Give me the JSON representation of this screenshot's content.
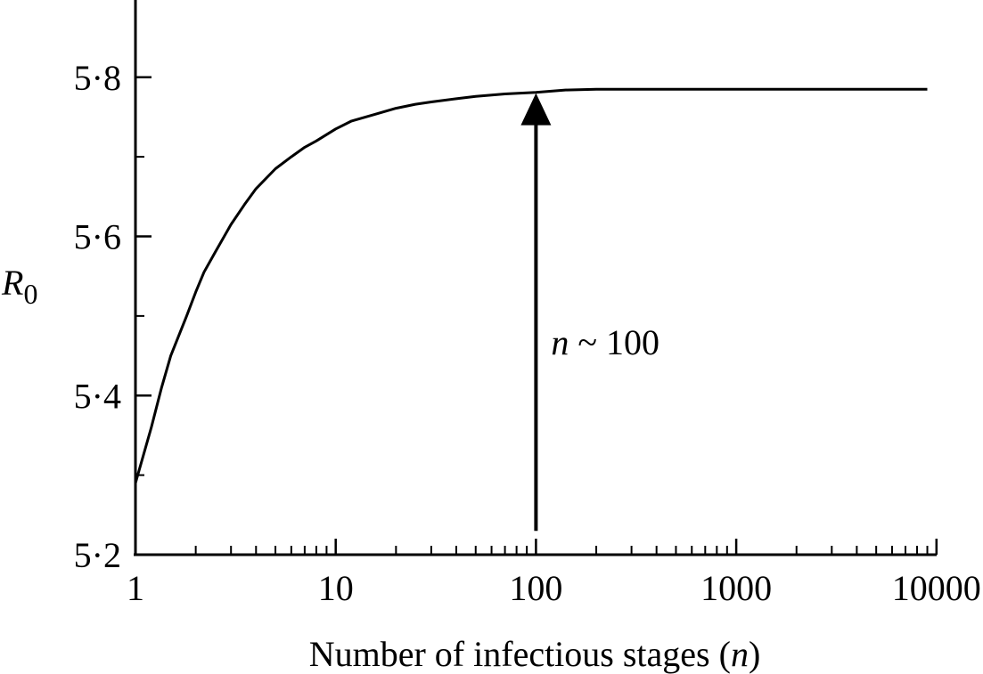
{
  "chart_data": {
    "type": "line",
    "xscale": "log",
    "xlim": [
      1,
      10000
    ],
    "ylim": [
      5.2,
      5.9
    ],
    "xlabel": {
      "pre": "Number of infectious stages (",
      "var": "n",
      "post": ")"
    },
    "ylabel": {
      "var": "R",
      "sub": "0"
    },
    "x_ticks": [
      {
        "value": 1,
        "label": "1"
      },
      {
        "value": 10,
        "label": "10"
      },
      {
        "value": 100,
        "label": "100"
      },
      {
        "value": 1000,
        "label": "1000"
      },
      {
        "value": 10000,
        "label": "10000"
      }
    ],
    "y_ticks": [
      {
        "value": 5.2,
        "label": "5·2"
      },
      {
        "value": 5.4,
        "label": "5·4"
      },
      {
        "value": 5.6,
        "label": "5·6"
      },
      {
        "value": 5.8,
        "label": "5·8"
      }
    ],
    "series": [
      {
        "x": [
          1,
          1.2,
          1.35,
          1.5,
          1.8,
          2,
          2.2,
          2.5,
          3,
          3.5,
          4,
          5,
          6,
          7,
          8,
          10,
          12,
          15,
          20,
          25,
          30,
          40,
          50,
          70,
          100,
          140,
          200,
          500,
          1000,
          5000,
          9000
        ],
        "y": [
          5.29,
          5.36,
          5.41,
          5.45,
          5.5,
          5.53,
          5.555,
          5.58,
          5.615,
          5.64,
          5.66,
          5.685,
          5.7,
          5.712,
          5.72,
          5.735,
          5.745,
          5.752,
          5.761,
          5.766,
          5.769,
          5.773,
          5.776,
          5.779,
          5.781,
          5.784,
          5.785,
          5.785,
          5.785,
          5.785,
          5.785
        ]
      }
    ],
    "annotation": {
      "x": 100,
      "y_start": 5.23,
      "y_end": 5.78,
      "label_var": "n",
      "label_rest": " ~ 100"
    }
  }
}
